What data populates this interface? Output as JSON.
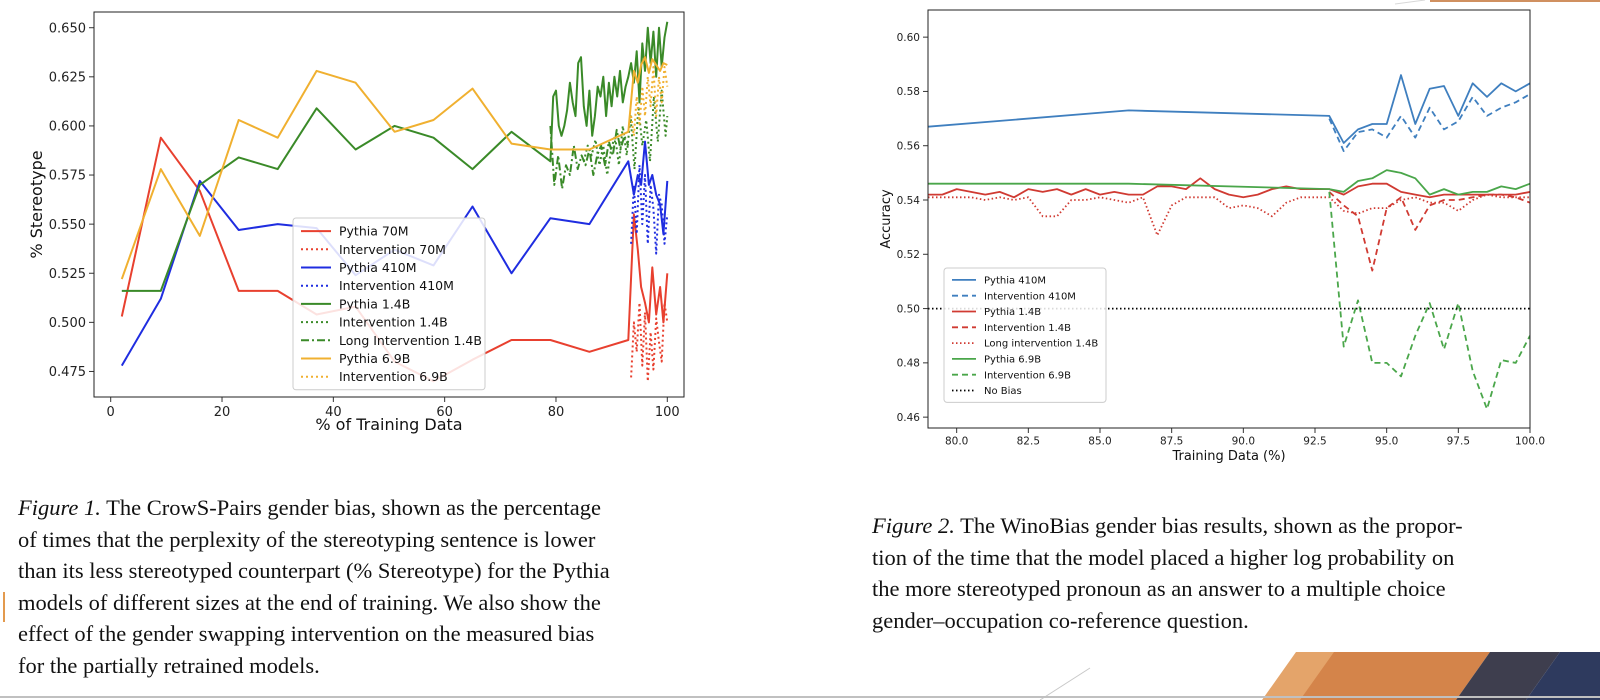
{
  "chart_data": [
    {
      "type": "line",
      "xlabel": "% of Training Data",
      "ylabel": "% Stereotype",
      "xlim": [
        -3,
        103
      ],
      "ylim": [
        0.462,
        0.658
      ],
      "xticks": [
        "0",
        "20",
        "40",
        "60",
        "80",
        "100"
      ],
      "yticks": [
        "0.475",
        "0.500",
        "0.525",
        "0.550",
        "0.575",
        "0.600",
        "0.625",
        "0.650"
      ],
      "legend": "lower-center",
      "series": [
        {
          "name": "Pythia 70M",
          "color": "#e8402f",
          "dash": "solid",
          "x": [
            2,
            9,
            16,
            23,
            30,
            37,
            44,
            51,
            58,
            65,
            72,
            79,
            86,
            93,
            94,
            94.7,
            95.3,
            96,
            96.7,
            97.3,
            98,
            98.7,
            99.3,
            100
          ],
          "y": [
            0.503,
            0.594,
            0.567,
            0.516,
            0.516,
            0.504,
            0.508,
            0.48,
            0.47,
            0.481,
            0.491,
            0.491,
            0.485,
            0.491,
            0.555,
            0.537,
            0.518,
            0.51,
            0.5,
            0.528,
            0.504,
            0.518,
            0.5,
            0.525
          ]
        },
        {
          "name": "Intervention 70M",
          "color": "#e8402f",
          "dash": "dot",
          "x": [
            93.5,
            94,
            94.5,
            95,
            95.5,
            96,
            96.5,
            97,
            97.5,
            98,
            98.5,
            99,
            99.5,
            100
          ],
          "y": [
            0.472,
            0.5,
            0.485,
            0.51,
            0.478,
            0.505,
            0.47,
            0.495,
            0.476,
            0.502,
            0.49,
            0.48,
            0.51,
            0.5
          ]
        },
        {
          "name": "Pythia 410M",
          "color": "#1f2de0",
          "dash": "solid",
          "x": [
            2,
            9,
            16,
            23,
            30,
            37,
            44,
            51,
            58,
            65,
            72,
            79,
            86,
            93,
            94,
            94.7,
            95.3,
            96,
            96.7,
            97.3,
            98,
            98.7,
            99.3,
            100
          ],
          "y": [
            0.478,
            0.512,
            0.572,
            0.547,
            0.55,
            0.548,
            0.524,
            0.537,
            0.529,
            0.559,
            0.525,
            0.553,
            0.55,
            0.582,
            0.565,
            0.575,
            0.57,
            0.592,
            0.57,
            0.575,
            0.565,
            0.56,
            0.545,
            0.572
          ]
        },
        {
          "name": "Intervention 410M",
          "color": "#1f2de0",
          "dash": "dot",
          "x": [
            93.5,
            94,
            94.5,
            95,
            95.5,
            96,
            96.5,
            97,
            97.5,
            98,
            98.5,
            99,
            99.5,
            100
          ],
          "y": [
            0.54,
            0.57,
            0.545,
            0.58,
            0.55,
            0.575,
            0.54,
            0.57,
            0.558,
            0.535,
            0.565,
            0.56,
            0.54,
            0.555
          ]
        },
        {
          "name": "Pythia 1.4B",
          "color": "#3a8a28",
          "dash": "solid",
          "x": [
            2,
            9,
            16,
            23,
            30,
            37,
            44,
            51,
            58,
            65,
            72,
            79,
            79.5,
            80,
            80.5,
            81,
            81.5,
            82,
            82.5,
            83,
            83.5,
            84,
            84.5,
            85,
            85.5,
            86,
            86.5,
            87,
            87.5,
            88,
            88.5,
            89,
            89.5,
            90,
            90.5,
            91,
            91.5,
            92,
            92.5,
            93,
            93.5,
            94,
            94.5,
            95,
            95.5,
            96,
            96.5,
            97,
            97.5,
            98,
            98.5,
            99,
            99.5,
            100
          ],
          "y": [
            0.516,
            0.516,
            0.57,
            0.584,
            0.578,
            0.609,
            0.588,
            0.6,
            0.594,
            0.578,
            0.597,
            0.582,
            0.615,
            0.618,
            0.6,
            0.595,
            0.6,
            0.608,
            0.622,
            0.612,
            0.605,
            0.632,
            0.635,
            0.61,
            0.6,
            0.618,
            0.595,
            0.605,
            0.62,
            0.615,
            0.625,
            0.605,
            0.622,
            0.61,
            0.625,
            0.615,
            0.628,
            0.612,
            0.62,
            0.625,
            0.632,
            0.622,
            0.638,
            0.612,
            0.642,
            0.628,
            0.65,
            0.632,
            0.648,
            0.625,
            0.65,
            0.63,
            0.645,
            0.653
          ]
        },
        {
          "name": "Intervention 1.4B",
          "color": "#3a8a28",
          "dash": "dot",
          "x": [
            85,
            85.7,
            86.4,
            87.1,
            87.8,
            88.5,
            89.2,
            89.9,
            90.6,
            91.3,
            92,
            92.7,
            93.4,
            94.1,
            94.8,
            95.5,
            96.2,
            96.9,
            97.6,
            98.3,
            99,
            99.7,
            100
          ],
          "y": [
            0.582,
            0.59,
            0.585,
            0.593,
            0.58,
            0.59,
            0.575,
            0.588,
            0.595,
            0.58,
            0.6,
            0.585,
            0.605,
            0.578,
            0.61,
            0.59,
            0.603,
            0.582,
            0.615,
            0.592,
            0.618,
            0.595,
            0.605
          ]
        },
        {
          "name": "Long Intervention 1.4B",
          "color": "#3a8a28",
          "dash": "dashdot",
          "x": [
            79,
            79.7,
            80.4,
            81.1,
            81.8,
            82.5,
            83.2,
            83.9,
            84.6,
            85.3,
            86,
            86.7,
            87.4,
            88.1,
            88.8,
            89.5,
            90.2,
            90.9,
            91.6,
            92.3,
            93
          ],
          "y": [
            0.6,
            0.57,
            0.585,
            0.568,
            0.58,
            0.575,
            0.59,
            0.578,
            0.585,
            0.58,
            0.588,
            0.575,
            0.585,
            0.59,
            0.58,
            0.592,
            0.585,
            0.598,
            0.588,
            0.595,
            0.59
          ]
        },
        {
          "name": "Pythia 6.9B",
          "color": "#f0b030",
          "dash": "solid",
          "x": [
            2,
            9,
            16,
            23,
            30,
            37,
            44,
            51,
            58,
            65,
            72,
            79,
            86,
            93,
            94,
            94.7,
            95.3,
            96,
            96.7,
            97.3,
            98,
            98.7,
            99.3,
            100
          ],
          "y": [
            0.522,
            0.578,
            0.544,
            0.603,
            0.594,
            0.628,
            0.622,
            0.597,
            0.603,
            0.619,
            0.591,
            0.588,
            0.588,
            0.597,
            0.628,
            0.622,
            0.631,
            0.635,
            0.627,
            0.634,
            0.631,
            0.628,
            0.632,
            0.631
          ]
        },
        {
          "name": "Intervention 6.9B",
          "color": "#f0b030",
          "dash": "dot",
          "x": [
            93.5,
            94,
            94.5,
            95,
            95.5,
            96,
            96.5,
            97,
            97.5,
            98,
            98.5,
            99,
            99.5,
            100
          ],
          "y": [
            0.605,
            0.595,
            0.615,
            0.6,
            0.62,
            0.605,
            0.625,
            0.61,
            0.63,
            0.605,
            0.625,
            0.612,
            0.63,
            0.62
          ]
        }
      ]
    },
    {
      "type": "line",
      "xlabel": "Training Data (%)",
      "ylabel": "Accuracy",
      "xlim": [
        79,
        100
      ],
      "ylim": [
        0.456,
        0.61
      ],
      "xticks": [
        "80.0",
        "82.5",
        "85.0",
        "87.5",
        "90.0",
        "92.5",
        "95.0",
        "97.5",
        "100.0"
      ],
      "yticks": [
        "0.46",
        "0.48",
        "0.50",
        "0.52",
        "0.54",
        "0.56",
        "0.58",
        "0.60"
      ],
      "legend": "lower-left",
      "series": [
        {
          "name": "Pythia 410M",
          "color": "#3f7fbf",
          "dash": "solid",
          "x": [
            79,
            86,
            93,
            93.5,
            94,
            94.5,
            95,
            95.5,
            96,
            96.5,
            97,
            97.5,
            98,
            98.5,
            99,
            99.5,
            100
          ],
          "y": [
            0.567,
            0.573,
            0.571,
            0.561,
            0.566,
            0.568,
            0.568,
            0.586,
            0.568,
            0.581,
            0.582,
            0.571,
            0.583,
            0.578,
            0.583,
            0.58,
            0.583
          ]
        },
        {
          "name": "Intervention 410M",
          "color": "#3f7fbf",
          "dash": "dash",
          "x": [
            93,
            93.5,
            94,
            94.5,
            95,
            95.5,
            96,
            96.5,
            97,
            97.5,
            98,
            98.5,
            99,
            99.5,
            100
          ],
          "y": [
            0.57,
            0.558,
            0.565,
            0.566,
            0.563,
            0.571,
            0.563,
            0.574,
            0.566,
            0.569,
            0.578,
            0.571,
            0.574,
            0.576,
            0.579
          ]
        },
        {
          "name": "Pythia 1.4B",
          "color": "#d03a32",
          "dash": "solid",
          "x": [
            79,
            79.5,
            80,
            80.5,
            81,
            81.5,
            82,
            82.5,
            83,
            83.5,
            84,
            84.5,
            85,
            85.5,
            86,
            86.5,
            87,
            87.5,
            88,
            88.5,
            89,
            89.5,
            90,
            90.5,
            91,
            91.5,
            92,
            92.5,
            93,
            93.5,
            94,
            94.5,
            95,
            95.5,
            96,
            96.5,
            97,
            97.5,
            98,
            98.5,
            99,
            99.5,
            100
          ],
          "y": [
            0.542,
            0.542,
            0.544,
            0.543,
            0.542,
            0.543,
            0.541,
            0.544,
            0.543,
            0.544,
            0.542,
            0.544,
            0.542,
            0.543,
            0.542,
            0.542,
            0.545,
            0.545,
            0.544,
            0.548,
            0.544,
            0.542,
            0.541,
            0.542,
            0.544,
            0.545,
            0.544,
            0.544,
            0.544,
            0.542,
            0.545,
            0.546,
            0.546,
            0.543,
            0.542,
            0.541,
            0.542,
            0.542,
            0.542,
            0.542,
            0.542,
            0.542,
            0.543
          ]
        },
        {
          "name": "Intervention 1.4B",
          "color": "#d03a32",
          "dash": "dash",
          "x": [
            93,
            93.5,
            94,
            94.5,
            95,
            95.5,
            96,
            96.5,
            97,
            97.5,
            98,
            98.5,
            99,
            99.5,
            100
          ],
          "y": [
            0.543,
            0.538,
            0.534,
            0.514,
            0.537,
            0.541,
            0.529,
            0.538,
            0.54,
            0.54,
            0.541,
            0.542,
            0.542,
            0.541,
            0.539
          ]
        },
        {
          "name": "Long intervention 1.4B",
          "color": "#d03a32",
          "dash": "dot",
          "x": [
            79,
            79.5,
            80,
            80.5,
            81,
            81.5,
            82,
            82.5,
            83,
            83.5,
            84,
            84.5,
            85,
            85.5,
            86,
            86.5,
            87,
            87.5,
            88,
            88.5,
            89,
            89.5,
            90,
            90.5,
            91,
            91.5,
            92,
            92.5,
            93,
            93.5,
            94,
            94.5,
            95,
            95.5,
            96,
            96.5,
            97,
            97.5,
            98,
            98.5,
            99,
            99.5,
            100
          ],
          "y": [
            0.541,
            0.541,
            0.541,
            0.541,
            0.54,
            0.541,
            0.54,
            0.541,
            0.534,
            0.534,
            0.54,
            0.54,
            0.541,
            0.54,
            0.539,
            0.541,
            0.527,
            0.538,
            0.541,
            0.541,
            0.541,
            0.537,
            0.538,
            0.537,
            0.534,
            0.539,
            0.541,
            0.541,
            0.541,
            0.536,
            0.535,
            0.537,
            0.537,
            0.54,
            0.541,
            0.539,
            0.539,
            0.536,
            0.54,
            0.542,
            0.541,
            0.541,
            0.541
          ]
        },
        {
          "name": "Pythia 6.9B",
          "color": "#4aa64a",
          "dash": "solid",
          "x": [
            79,
            86,
            93,
            93.5,
            94,
            94.5,
            95,
            95.5,
            96,
            96.5,
            97,
            97.5,
            98,
            98.5,
            99,
            99.5,
            100
          ],
          "y": [
            0.546,
            0.546,
            0.544,
            0.543,
            0.547,
            0.548,
            0.551,
            0.55,
            0.548,
            0.542,
            0.544,
            0.542,
            0.543,
            0.543,
            0.545,
            0.544,
            0.546
          ]
        },
        {
          "name": "Intervention 6.9B",
          "color": "#4aa64a",
          "dash": "dash",
          "x": [
            93,
            93.5,
            94,
            94.5,
            95,
            95.5,
            96,
            96.5,
            97,
            97.5,
            98,
            98.5,
            99,
            99.5,
            100
          ],
          "y": [
            0.543,
            0.486,
            0.503,
            0.48,
            0.48,
            0.475,
            0.49,
            0.502,
            0.485,
            0.502,
            0.477,
            0.463,
            0.481,
            0.48,
            0.49
          ]
        },
        {
          "name": "No Bias",
          "color": "#000000",
          "dash": "dot",
          "x": [
            79,
            100
          ],
          "y": [
            0.5,
            0.5
          ]
        }
      ]
    }
  ],
  "captions": [
    {
      "label": "Figure 1.",
      "lines": [
        " The CrowS-Pairs gender bias, shown as the percentage",
        "of times that the perplexity of the stereotyping sentence is lower",
        "than its less stereotyped counterpart (% Stereotype) for the Pythia",
        "models of different sizes at the end of training. We also show the",
        "effect of the gender swapping intervention on the measured bias",
        "for the partially retrained models."
      ]
    },
    {
      "label": "Figure 2.",
      "lines": [
        " The WinoBias gender bias results, shown as the propor-",
        "tion of the time that the model placed a higher log probability on",
        "the more stereotyped pronoun as an answer to a multiple choice",
        "gender–occupation co-reference question."
      ]
    }
  ]
}
